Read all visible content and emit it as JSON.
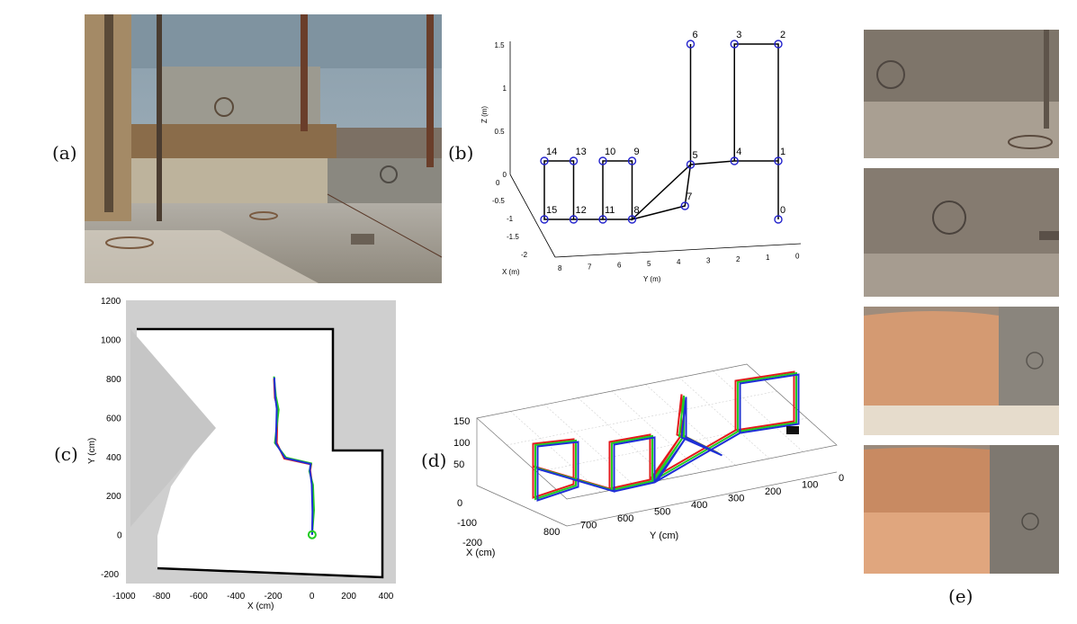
{
  "figure": {
    "panel_labels": {
      "a": "(a)",
      "b": "(b)",
      "c": "(c)",
      "d": "(d)",
      "e": "(e)"
    }
  },
  "colors": {
    "trajectory_red": "#e31a1c",
    "trajectory_green": "#22cc22",
    "trajectory_blue": "#1f2fd6",
    "waypoint_blue": "#2222cc",
    "map_unknown": "#cfcfcf",
    "map_wall": "#000000"
  },
  "chart_data": [
    {
      "id": "b",
      "type": "line",
      "subtype": "3d-waypoint-path",
      "xlabel": "X (m)",
      "ylabel": "Y (m)",
      "zlabel": "Z (m)",
      "x_ticks": [
        "0",
        "-0.5",
        "-1",
        "-1.5",
        "-2"
      ],
      "y_ticks": [
        "8",
        "7",
        "6",
        "5",
        "4",
        "3",
        "2",
        "1",
        "0"
      ],
      "z_ticks": [
        "0",
        "0.5",
        "1",
        "1.5"
      ],
      "points": [
        {
          "id": "0",
          "y": 0,
          "z": 0
        },
        {
          "id": "1",
          "y": 0,
          "z": 0.5
        },
        {
          "id": "2",
          "y": 0,
          "z": 1.5
        },
        {
          "id": "3",
          "y": 1.5,
          "z": 1.5
        },
        {
          "id": "4",
          "y": 1.5,
          "z": 0.5
        },
        {
          "id": "5",
          "y": 3,
          "z": 0.5
        },
        {
          "id": "6",
          "y": 3,
          "z": 1.5
        },
        {
          "id": "7",
          "y": 3.5,
          "z": 0
        },
        {
          "id": "8",
          "y": 5,
          "z": 0
        },
        {
          "id": "9",
          "y": 5,
          "z": 0.5
        },
        {
          "id": "10",
          "y": 6,
          "z": 0.5
        },
        {
          "id": "11",
          "y": 6,
          "z": 0
        },
        {
          "id": "12",
          "y": 7,
          "z": 0
        },
        {
          "id": "13",
          "y": 7,
          "z": 0.5
        },
        {
          "id": "14",
          "y": 8,
          "z": 0.5
        },
        {
          "id": "15",
          "y": 8,
          "z": 0
        }
      ],
      "grid": false
    },
    {
      "id": "c",
      "type": "line",
      "subtype": "occupancy-map-with-trajectories",
      "xlabel": "X (cm)",
      "ylabel": "Y (cm)",
      "x_ticks": [
        "-1000",
        "-800",
        "-600",
        "-400",
        "-200",
        "0",
        "200",
        "400"
      ],
      "y_ticks": [
        "1200",
        "1000",
        "800",
        "600",
        "400",
        "200",
        "0",
        "-200"
      ],
      "xlim": [
        -1000,
        450
      ],
      "ylim": [
        -250,
        1200
      ],
      "series": [
        {
          "color": "#e31a1c",
          "x": [
            0,
            5,
            0,
            -10,
            -5,
            -150,
            -190,
            -185,
            -200,
            -205
          ],
          "y": [
            0,
            120,
            260,
            330,
            360,
            390,
            470,
            650,
            700,
            800
          ]
        },
        {
          "color": "#22cc22",
          "x": [
            0,
            10,
            5,
            -15,
            -5,
            -140,
            -200,
            -180,
            -195,
            -205
          ],
          "y": [
            0,
            125,
            255,
            325,
            365,
            395,
            470,
            640,
            710,
            810
          ]
        },
        {
          "color": "#1f2fd6",
          "x": [
            0,
            2,
            -2,
            -12,
            -8,
            -145,
            -195,
            -190,
            -198,
            -203
          ],
          "y": [
            0,
            118,
            258,
            330,
            362,
            392,
            468,
            645,
            705,
            805
          ]
        }
      ],
      "grid": false
    },
    {
      "id": "d",
      "type": "line",
      "subtype": "3d-trajectories",
      "xlabel": "X (cm)",
      "ylabel": "Y (cm)",
      "x_ticks": [
        "0",
        "-100",
        "-200"
      ],
      "y_ticks": [
        "800",
        "700",
        "600",
        "500",
        "400",
        "300",
        "200",
        "100",
        "0"
      ],
      "z_ticks": [
        "50",
        "100",
        "150"
      ],
      "series_colors": [
        "#e31a1c",
        "#22cc22",
        "#1f2fd6"
      ],
      "grid": true
    }
  ]
}
